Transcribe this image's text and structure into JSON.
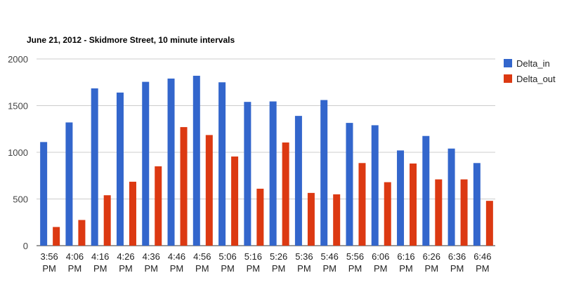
{
  "chart_data": {
    "type": "bar",
    "title": "June 21, 2012 - Skidmore Street, 10 minute intervals",
    "categories": [
      [
        "3:56",
        "PM"
      ],
      [
        "4:06",
        "PM"
      ],
      [
        "4:16",
        "PM"
      ],
      [
        "4:26",
        "PM"
      ],
      [
        "4:36",
        "PM"
      ],
      [
        "4:46",
        "PM"
      ],
      [
        "4:56",
        "PM"
      ],
      [
        "5:06",
        "PM"
      ],
      [
        "5:16",
        "PM"
      ],
      [
        "5:26",
        "PM"
      ],
      [
        "5:36",
        "PM"
      ],
      [
        "5:46",
        "PM"
      ],
      [
        "5:56",
        "PM"
      ],
      [
        "6:06",
        "PM"
      ],
      [
        "6:16",
        "PM"
      ],
      [
        "6:26",
        "PM"
      ],
      [
        "6:36",
        "PM"
      ],
      [
        "6:46",
        "PM"
      ]
    ],
    "series": [
      {
        "name": "Delta_in",
        "color": "#3366cc",
        "values": [
          1110,
          1320,
          1685,
          1640,
          1755,
          1790,
          1820,
          1750,
          1540,
          1545,
          1390,
          1560,
          1315,
          1290,
          1020,
          1175,
          1040,
          885
        ]
      },
      {
        "name": "Delta_out",
        "color": "#dc3912",
        "values": [
          200,
          275,
          540,
          685,
          850,
          1270,
          1185,
          955,
          610,
          1105,
          565,
          550,
          885,
          680,
          880,
          710,
          710,
          480
        ]
      }
    ],
    "ylim": [
      0,
      2000
    ],
    "yticks": [
      0,
      500,
      1000,
      1500,
      2000
    ],
    "xlabel": "",
    "ylabel": "",
    "grid": true,
    "legend_position": "right"
  }
}
